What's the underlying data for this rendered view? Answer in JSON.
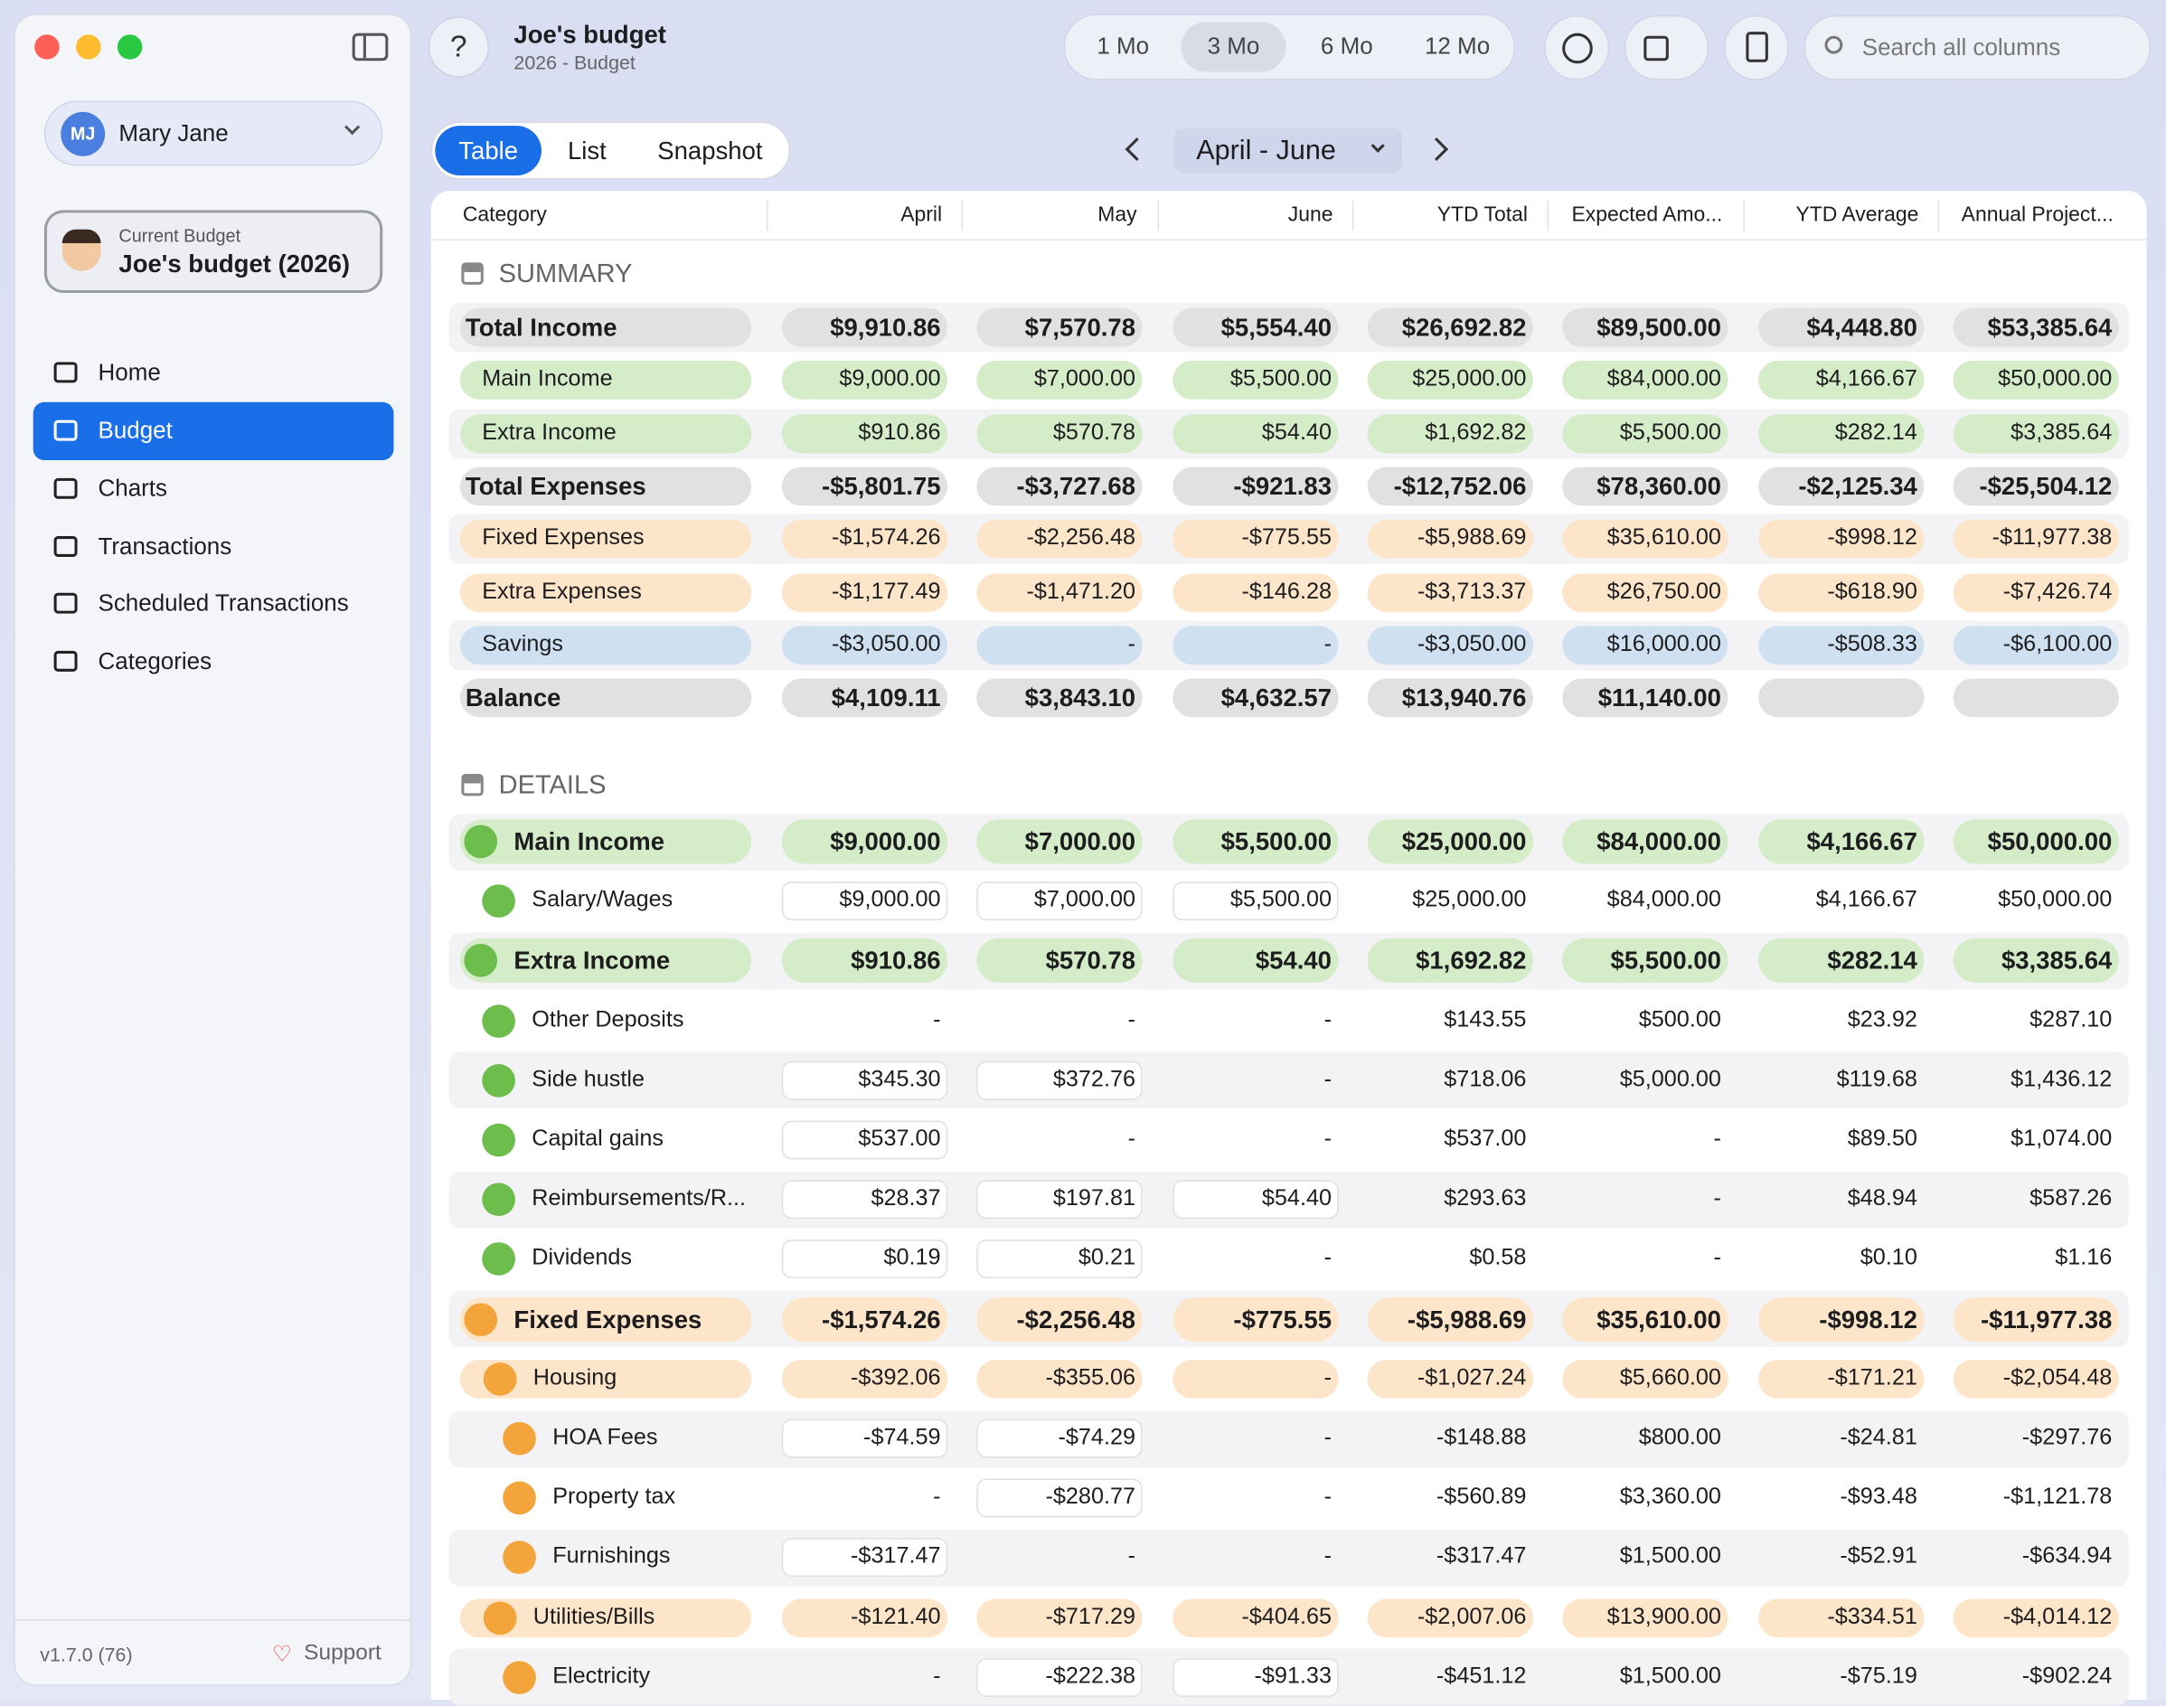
{
  "sidebar": {
    "user": {
      "initials": "MJ",
      "name": "Mary Jane"
    },
    "current_budget": {
      "label": "Current Budget",
      "name": "Joe's budget (2026)"
    },
    "nav": [
      "Home",
      "Budget",
      "Charts",
      "Transactions",
      "Scheduled Transactions",
      "Categories"
    ],
    "selected_nav": 1,
    "version": "v1.7.0 (76)",
    "support": "Support"
  },
  "header": {
    "title": "Joe's budget",
    "subtitle": "2026 - Budget",
    "ranges": [
      "1 Mo",
      "3 Mo",
      "6 Mo",
      "12 Mo"
    ],
    "selected_range": 1,
    "search_placeholder": "Search all columns"
  },
  "view": {
    "tabs": [
      "Table",
      "List",
      "Snapshot"
    ],
    "selected_tab": 0,
    "period": "April - June"
  },
  "table": {
    "columns": [
      "Category",
      "April",
      "May",
      "June",
      "YTD Total",
      "Expected Amo...",
      "YTD Average",
      "Annual Project..."
    ],
    "sections": [
      {
        "title": "SUMMARY",
        "rows": [
          {
            "label": "Total Income",
            "kind": "total",
            "tone": "total",
            "cells": [
              "$9,910.86",
              "$7,570.78",
              "$5,554.40",
              "$26,692.82",
              "$89,500.00",
              "$4,448.80",
              "$53,385.64"
            ]
          },
          {
            "label": "Main Income",
            "kind": "line",
            "tone": "income",
            "cells": [
              "$9,000.00",
              "$7,000.00",
              "$5,500.00",
              "$25,000.00",
              "$84,000.00",
              "$4,166.67",
              "$50,000.00"
            ]
          },
          {
            "label": "Extra Income",
            "kind": "line",
            "tone": "income",
            "cells": [
              "$910.86",
              "$570.78",
              "$54.40",
              "$1,692.82",
              "$5,500.00",
              "$282.14",
              "$3,385.64"
            ]
          },
          {
            "label": "Total Expenses",
            "kind": "total",
            "tone": "total",
            "cells": [
              "-$5,801.75",
              "-$3,727.68",
              "-$921.83",
              "-$12,752.06",
              "$78,360.00",
              "-$2,125.34",
              "-$25,504.12"
            ]
          },
          {
            "label": "Fixed Expenses",
            "kind": "line",
            "tone": "expense",
            "cells": [
              "-$1,574.26",
              "-$2,256.48",
              "-$775.55",
              "-$5,988.69",
              "$35,610.00",
              "-$998.12",
              "-$11,977.38"
            ]
          },
          {
            "label": "Extra Expenses",
            "kind": "line",
            "tone": "expense",
            "cells": [
              "-$1,177.49",
              "-$1,471.20",
              "-$146.28",
              "-$3,713.37",
              "$26,750.00",
              "-$618.90",
              "-$7,426.74"
            ]
          },
          {
            "label": "Savings",
            "kind": "line",
            "tone": "savings",
            "cells": [
              "-$3,050.00",
              "-",
              "-",
              "-$3,050.00",
              "$16,000.00",
              "-$508.33",
              "-$6,100.00"
            ]
          },
          {
            "label": "Balance",
            "kind": "total",
            "tone": "total",
            "cells": [
              "$4,109.11",
              "$3,843.10",
              "$4,632.57",
              "$13,940.76",
              "$11,140.00",
              null,
              null
            ]
          }
        ]
      },
      {
        "title": "DETAILS",
        "rows": [
          {
            "label": "Main Income",
            "kind": "group",
            "tone": "income",
            "level": 0,
            "cells": [
              "$9,000.00",
              "$7,000.00",
              "$5,500.00",
              "$25,000.00",
              "$84,000.00",
              "$4,166.67",
              "$50,000.00"
            ]
          },
          {
            "label": "Salary/Wages",
            "kind": "item",
            "tone": "income",
            "level": 1,
            "cells": [
              "$9,000.00",
              "$7,000.00",
              "$5,500.00",
              "$25,000.00",
              "$84,000.00",
              "$4,166.67",
              "$50,000.00"
            ]
          },
          {
            "label": "Extra Income",
            "kind": "group",
            "tone": "income",
            "level": 0,
            "cells": [
              "$910.86",
              "$570.78",
              "$54.40",
              "$1,692.82",
              "$5,500.00",
              "$282.14",
              "$3,385.64"
            ]
          },
          {
            "label": "Other Deposits",
            "kind": "item",
            "tone": "income",
            "level": 1,
            "cells": [
              "-",
              "-",
              "-",
              "$143.55",
              "$500.00",
              "$23.92",
              "$287.10"
            ]
          },
          {
            "label": "Side hustle",
            "kind": "item",
            "tone": "income",
            "level": 1,
            "cells": [
              "$345.30",
              "$372.76",
              "-",
              "$718.06",
              "$5,000.00",
              "$119.68",
              "$1,436.12"
            ]
          },
          {
            "label": "Capital gains",
            "kind": "item",
            "tone": "income",
            "level": 1,
            "cells": [
              "$537.00",
              "-",
              "-",
              "$537.00",
              "-",
              "$89.50",
              "$1,074.00"
            ]
          },
          {
            "label": "Reimbursements/R...",
            "kind": "item",
            "tone": "income",
            "level": 1,
            "cells": [
              "$28.37",
              "$197.81",
              "$54.40",
              "$293.63",
              "-",
              "$48.94",
              "$587.26"
            ]
          },
          {
            "label": "Dividends",
            "kind": "item",
            "tone": "income",
            "level": 1,
            "cells": [
              "$0.19",
              "$0.21",
              "-",
              "$0.58",
              "-",
              "$0.10",
              "$1.16"
            ]
          },
          {
            "label": "Fixed Expenses",
            "kind": "group",
            "tone": "expense",
            "level": 0,
            "cells": [
              "-$1,574.26",
              "-$2,256.48",
              "-$775.55",
              "-$5,988.69",
              "$35,610.00",
              "-$998.12",
              "-$11,977.38"
            ]
          },
          {
            "label": "Housing",
            "kind": "subgroup",
            "tone": "expense",
            "level": 1,
            "cells": [
              "-$392.06",
              "-$355.06",
              "-",
              "-$1,027.24",
              "$5,660.00",
              "-$171.21",
              "-$2,054.48"
            ]
          },
          {
            "label": "HOA Fees",
            "kind": "item",
            "tone": "expense",
            "level": 2,
            "cells": [
              "-$74.59",
              "-$74.29",
              "-",
              "-$148.88",
              "$800.00",
              "-$24.81",
              "-$297.76"
            ]
          },
          {
            "label": "Property tax",
            "kind": "item",
            "tone": "expense",
            "level": 2,
            "cells": [
              "-",
              "-$280.77",
              "-",
              "-$560.89",
              "$3,360.00",
              "-$93.48",
              "-$1,121.78"
            ]
          },
          {
            "label": "Furnishings",
            "kind": "item",
            "tone": "expense",
            "level": 2,
            "cells": [
              "-$317.47",
              "-",
              "-",
              "-$317.47",
              "$1,500.00",
              "-$52.91",
              "-$634.94"
            ]
          },
          {
            "label": "Utilities/Bills",
            "kind": "subgroup",
            "tone": "expense",
            "level": 1,
            "cells": [
              "-$121.40",
              "-$717.29",
              "-$404.65",
              "-$2,007.06",
              "$13,900.00",
              "-$334.51",
              "-$4,014.12"
            ]
          },
          {
            "label": "Electricity",
            "kind": "item",
            "tone": "expense",
            "level": 2,
            "cells": [
              "-",
              "-$222.38",
              "-$91.33",
              "-$451.12",
              "$1,500.00",
              "-$75.19",
              "-$902.24"
            ]
          }
        ]
      }
    ]
  }
}
